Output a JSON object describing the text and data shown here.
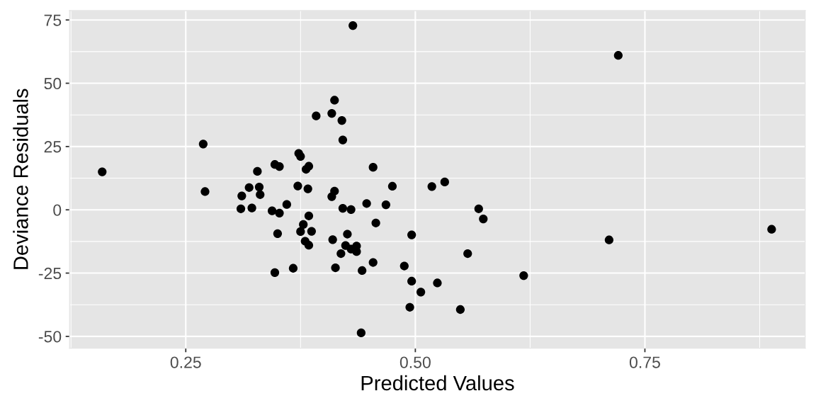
{
  "chart_data": {
    "type": "scatter",
    "xlabel": "Predicted Values",
    "ylabel": "Deviance Residuals",
    "color": "#000000",
    "marker": "circle",
    "grid": true,
    "xlim": [
      0.1235,
      0.9245
    ],
    "ylim": [
      -54.7,
      78.7
    ],
    "xticks": [
      {
        "value": 0.25,
        "label": "0.25"
      },
      {
        "value": 0.5,
        "label": "0.50"
      },
      {
        "value": 0.75,
        "label": "0.75"
      }
    ],
    "yticks": [
      -50,
      -25,
      0,
      25,
      50,
      75
    ],
    "x": [
      0.159,
      0.269,
      0.328,
      0.347,
      0.352,
      0.373,
      0.375,
      0.381,
      0.384,
      0.392,
      0.432,
      0.412,
      0.409,
      0.42,
      0.421,
      0.454,
      0.721,
      0.271,
      0.319,
      0.33,
      0.311,
      0.331,
      0.372,
      0.383,
      0.31,
      0.322,
      0.36,
      0.344,
      0.352,
      0.384,
      0.378,
      0.35,
      0.375,
      0.387,
      0.38,
      0.384,
      0.367,
      0.347,
      0.412,
      0.409,
      0.475,
      0.518,
      0.532,
      0.447,
      0.468,
      0.421,
      0.43,
      0.569,
      0.574,
      0.457,
      0.496,
      0.426,
      0.41,
      0.424,
      0.436,
      0.43,
      0.436,
      0.419,
      0.557,
      0.454,
      0.488,
      0.413,
      0.442,
      0.618,
      0.496,
      0.524,
      0.506,
      0.494,
      0.549,
      0.441,
      0.711,
      0.888
    ],
    "values": [
      15.0,
      26.0,
      15.2,
      17.9,
      17.1,
      22.3,
      21.1,
      16.0,
      17.2,
      37.1,
      72.8,
      43.3,
      38.1,
      35.3,
      27.6,
      16.8,
      61.0,
      7.2,
      8.8,
      9.0,
      5.5,
      6.0,
      9.4,
      8.3,
      0.4,
      0.7,
      2.1,
      -0.4,
      -1.3,
      -2.4,
      -5.8,
      -9.4,
      -8.6,
      -8.5,
      -12.4,
      -14.0,
      -23.1,
      -24.8,
      7.4,
      5.2,
      9.3,
      9.2,
      11.0,
      2.5,
      2.0,
      0.6,
      0.1,
      0.4,
      -3.6,
      -5.2,
      -9.9,
      -9.6,
      -11.8,
      -14.1,
      -14.3,
      -15.5,
      -16.5,
      -17.3,
      -17.3,
      -20.8,
      -22.2,
      -22.9,
      -24.0,
      -26.0,
      -28.2,
      -28.9,
      -32.5,
      -38.5,
      -39.4,
      -48.6,
      -11.9,
      -7.7
    ]
  }
}
